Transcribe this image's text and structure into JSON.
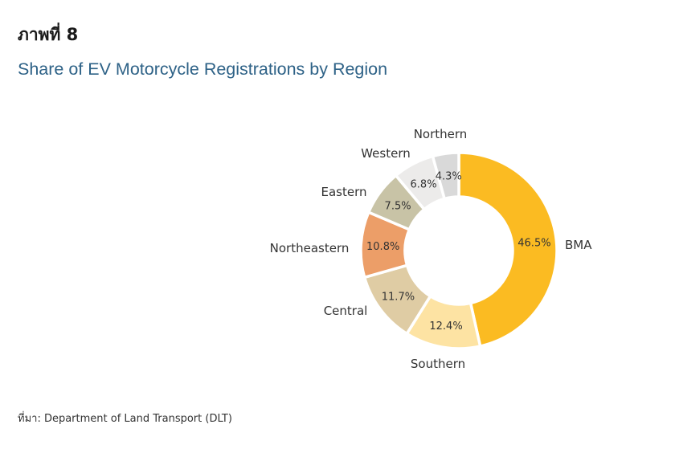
{
  "figure": {
    "label": "ภาพที่ 8",
    "title": "Share of EV Motorcycle Registrations by Region",
    "source": "ที่มา: Department of Land Transport (DLT)"
  },
  "chart_data": {
    "type": "pie",
    "subtype": "donut",
    "title": "Share of EV Motorcycle Registrations by Region",
    "unit": "%",
    "categories": [
      "BMA",
      "Southern",
      "Central",
      "Northeastern",
      "Eastern",
      "Western",
      "Northern"
    ],
    "values": [
      46.5,
      12.4,
      11.7,
      10.8,
      7.5,
      6.8,
      4.3
    ],
    "value_labels": [
      "46.5%",
      "12.4%",
      "11.7%",
      "10.8%",
      "7.5%",
      "6.8%",
      "4.3%"
    ],
    "colors": [
      "#fbbb22",
      "#fde3a3",
      "#dfcca4",
      "#ec9e68",
      "#c8c3a6",
      "#ecebea",
      "#d9d9d9"
    ],
    "start_angle_deg": 0,
    "direction": "clockwise",
    "legend": "none (category labels outside slices)"
  }
}
